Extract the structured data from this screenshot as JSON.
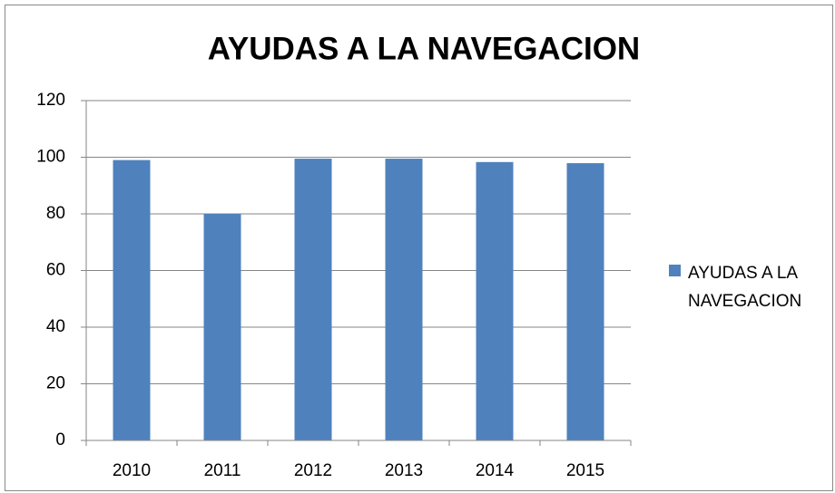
{
  "chart_data": {
    "type": "bar",
    "title": "AYUDAS A LA NAVEGACION",
    "categories": [
      "2010",
      "2011",
      "2012",
      "2013",
      "2014",
      "2015"
    ],
    "series": [
      {
        "name": "AYUDAS A LA NAVEGACION",
        "color": "#4f81bd",
        "values": [
          99,
          80,
          99.5,
          99.5,
          98.3,
          97.9
        ]
      }
    ],
    "ylim": [
      0,
      120
    ],
    "yticks": [
      0,
      20,
      40,
      60,
      80,
      100,
      120
    ],
    "grid": true,
    "legend": "right"
  }
}
